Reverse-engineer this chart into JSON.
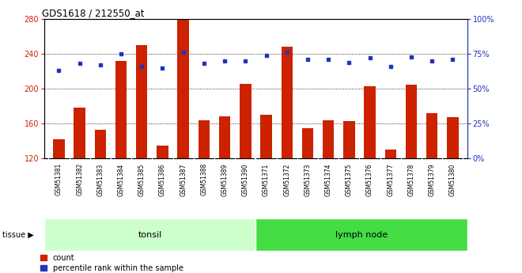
{
  "title": "GDS1618 / 212550_at",
  "samples": [
    "GSM51381",
    "GSM51382",
    "GSM51383",
    "GSM51384",
    "GSM51385",
    "GSM51386",
    "GSM51387",
    "GSM51388",
    "GSM51389",
    "GSM51390",
    "GSM51371",
    "GSM51372",
    "GSM51373",
    "GSM51374",
    "GSM51375",
    "GSM51376",
    "GSM51377",
    "GSM51378",
    "GSM51379",
    "GSM51380"
  ],
  "counts": [
    142,
    178,
    153,
    232,
    250,
    135,
    280,
    164,
    168,
    206,
    170,
    248,
    155,
    164,
    163,
    203,
    130,
    205,
    172,
    167
  ],
  "percentiles": [
    63,
    68,
    67,
    75,
    66,
    65,
    76,
    68,
    70,
    70,
    74,
    76,
    71,
    71,
    69,
    72,
    66,
    73,
    70,
    71
  ],
  "tonsil_count": 10,
  "lymph_count": 10,
  "ylim_left": [
    120,
    280
  ],
  "ylim_right": [
    0,
    100
  ],
  "yticks_left": [
    120,
    160,
    200,
    240,
    280
  ],
  "yticks_right": [
    0,
    25,
    50,
    75,
    100
  ],
  "bar_color": "#CC2200",
  "dot_color": "#2233BB",
  "tonsil_bg": "#CCFFCC",
  "lymph_bg": "#44DD44",
  "xlabel_area_bg": "#C8C8C8",
  "tissue_label": "tissue",
  "tonsil_label": "tonsil",
  "lymph_label": "lymph node",
  "legend_count": "count",
  "legend_pct": "percentile rank within the sample",
  "fig_width": 6.6,
  "fig_height": 3.45
}
